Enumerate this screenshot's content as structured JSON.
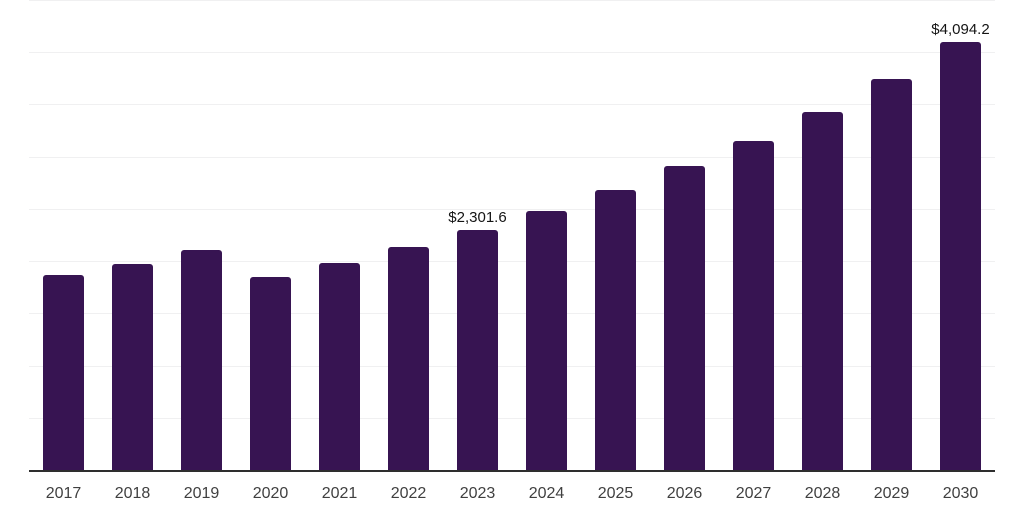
{
  "chart_data": {
    "type": "bar",
    "title": "",
    "xlabel": "",
    "ylabel": "",
    "ylim": [
      0,
      4500
    ],
    "grid_step": 500,
    "grid_visible": true,
    "y_axis_labels_visible": false,
    "legend": "none",
    "categories": [
      "2017",
      "2018",
      "2019",
      "2020",
      "2021",
      "2022",
      "2023",
      "2024",
      "2025",
      "2026",
      "2027",
      "2028",
      "2029",
      "2030"
    ],
    "points": [
      {
        "year": "2017",
        "value": 1865,
        "label": ""
      },
      {
        "year": "2018",
        "value": 1970,
        "label": ""
      },
      {
        "year": "2019",
        "value": 2105,
        "label": ""
      },
      {
        "year": "2020",
        "value": 1850,
        "label": ""
      },
      {
        "year": "2021",
        "value": 1985,
        "label": ""
      },
      {
        "year": "2022",
        "value": 2140,
        "label": ""
      },
      {
        "year": "2023",
        "value": 2301.6,
        "label": "$2,301.6"
      },
      {
        "year": "2024",
        "value": 2485,
        "label": ""
      },
      {
        "year": "2025",
        "value": 2680,
        "label": ""
      },
      {
        "year": "2026",
        "value": 2915,
        "label": ""
      },
      {
        "year": "2027",
        "value": 3150,
        "label": ""
      },
      {
        "year": "2028",
        "value": 3425,
        "label": ""
      },
      {
        "year": "2029",
        "value": 3745,
        "label": ""
      },
      {
        "year": "2030",
        "value": 4094.2,
        "label": "$4,094.2"
      }
    ],
    "colors": {
      "bar": "#371452",
      "gridline": "#f0f0f1",
      "axis_line": "#2e2e2e",
      "tick_label": "#404040",
      "data_label": "#141414",
      "background": "#ffffff"
    }
  }
}
